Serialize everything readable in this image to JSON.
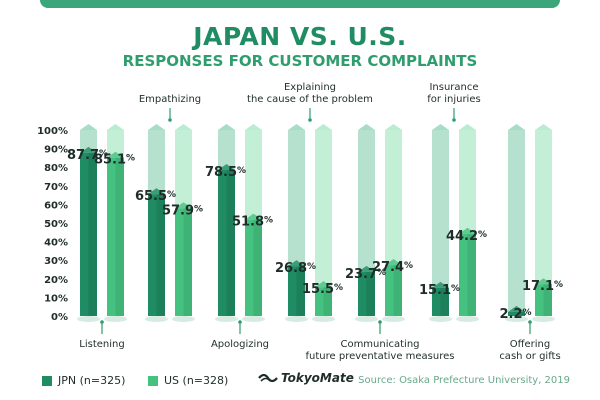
{
  "chart_data": {
    "type": "bar",
    "title": "JAPAN VS. U.S.",
    "subtitle": "RESPONSES FOR CUSTOMER COMPLAINTS",
    "categories": [
      {
        "lines": [
          "Listening"
        ],
        "position": "bottom"
      },
      {
        "lines": [
          "Empathizing"
        ],
        "position": "top"
      },
      {
        "lines": [
          "Apologizing"
        ],
        "position": "bottom"
      },
      {
        "lines": [
          "Explaining",
          "the cause of the problem"
        ],
        "position": "top"
      },
      {
        "lines": [
          "Communicating",
          "future preventative measures"
        ],
        "position": "bottom"
      },
      {
        "lines": [
          "Insurance",
          "for injuries"
        ],
        "position": "top"
      },
      {
        "lines": [
          "Offering",
          "cash or gifts"
        ],
        "position": "bottom"
      }
    ],
    "series": [
      {
        "name": "JPN (n=325)",
        "color": "#1f8c63",
        "values": [
          87.7,
          65.5,
          78.5,
          26.8,
          23.7,
          15.1,
          2.2
        ]
      },
      {
        "name": "US (n=328)",
        "color": "#45c27f",
        "values": [
          85.1,
          57.9,
          51.8,
          15.5,
          27.4,
          44.2,
          17.1
        ]
      }
    ],
    "ylim": [
      0,
      100
    ],
    "yticks": [
      "0%",
      "10%",
      "20%",
      "30%",
      "40%",
      "50%",
      "60%",
      "70%",
      "80%",
      "90%",
      "100%"
    ],
    "value_suffix": "%"
  },
  "legend": {
    "jpn_label": "JPN (n=325)",
    "us_label": "US (n=328)"
  },
  "brand": "TokyoMate",
  "source": "Source: Osaka Prefecture University, 2019",
  "colors": {
    "jpn": "#1f8c63",
    "us": "#45c27f",
    "empty_jpn": "#a8dcc6",
    "empty_us": "#b9ecd0"
  }
}
